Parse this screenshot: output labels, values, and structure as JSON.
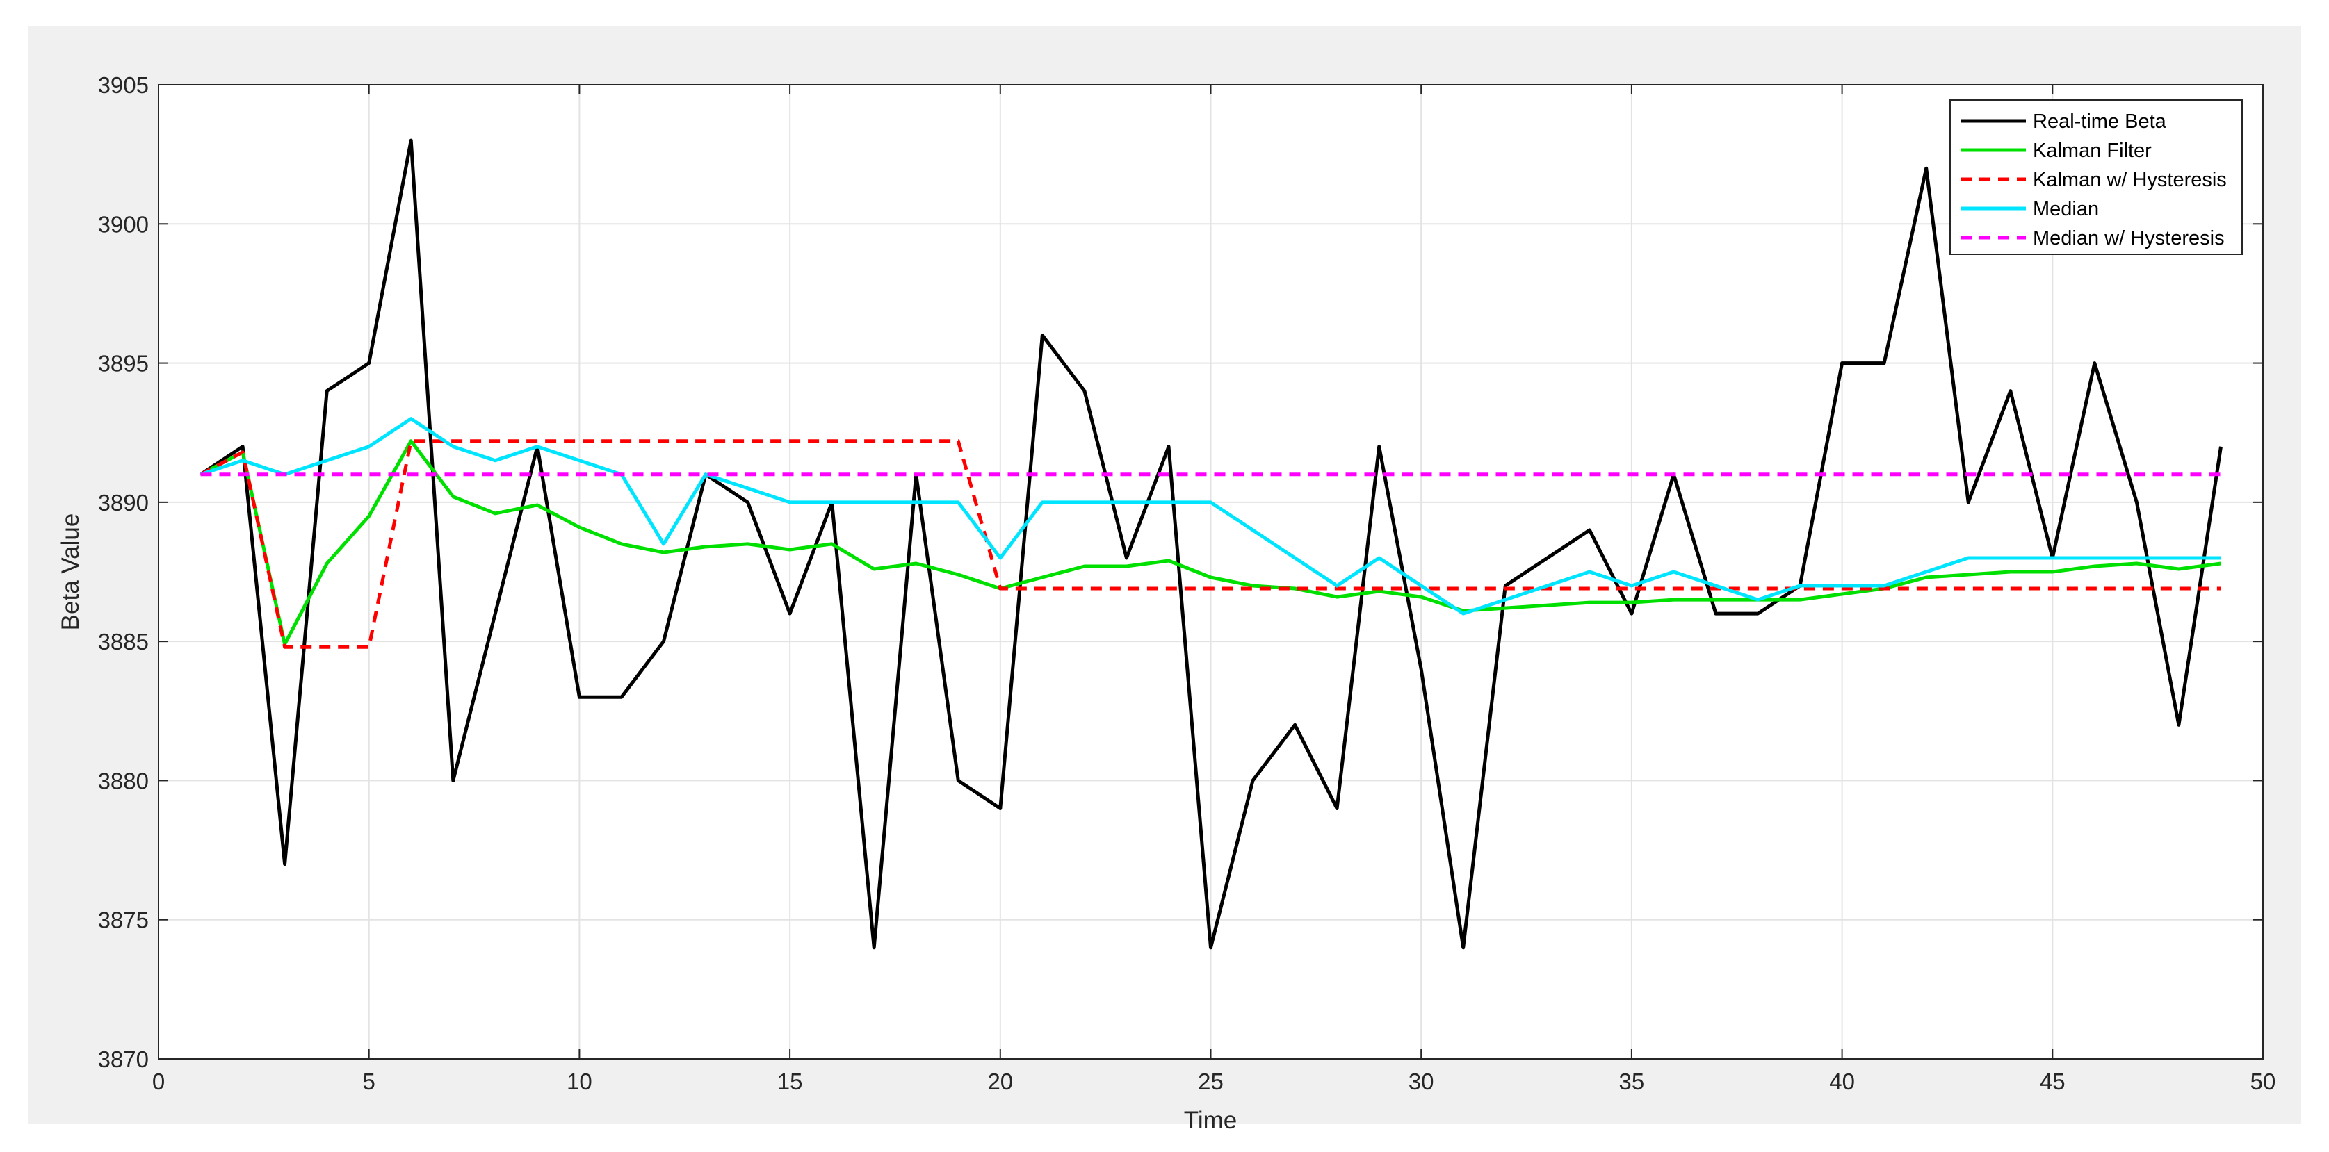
{
  "chart_data": {
    "type": "line",
    "xlabel": "Time",
    "ylabel": "Beta Value",
    "xlim": [
      0,
      50
    ],
    "ylim": [
      3870,
      3905
    ],
    "xticks": [
      0,
      5,
      10,
      15,
      20,
      25,
      30,
      35,
      40,
      45,
      50
    ],
    "yticks": [
      3870,
      3875,
      3880,
      3885,
      3890,
      3895,
      3900,
      3905
    ],
    "grid": true,
    "legend": "top-right",
    "x": [
      1,
      2,
      3,
      4,
      5,
      6,
      7,
      8,
      9,
      10,
      11,
      12,
      13,
      14,
      15,
      16,
      17,
      18,
      19,
      20,
      21,
      22,
      23,
      24,
      25,
      26,
      27,
      28,
      29,
      30,
      31,
      32,
      33,
      34,
      35,
      36,
      37,
      38,
      39,
      40,
      41,
      42,
      43,
      44,
      45,
      46,
      47,
      48,
      49
    ],
    "series": [
      {
        "name": "Real-time Beta",
        "color": "#000000",
        "dash": "solid",
        "values": [
          3891,
          3892,
          3877,
          3894,
          3895,
          3903,
          3880,
          3886,
          3892,
          3883,
          3883,
          3885,
          3891,
          3890,
          3886,
          3890,
          3874,
          3891,
          3880,
          3879,
          3896,
          3894,
          3888,
          3892,
          3874,
          3880,
          3882,
          3879,
          3892,
          3884,
          3874,
          3887,
          3888,
          3889,
          3886,
          3891,
          3886,
          3886,
          3887,
          3895,
          3895,
          3902,
          3890,
          3894,
          3888,
          3895,
          3890,
          3882,
          3892
        ]
      },
      {
        "name": "Kalman Filter",
        "color": "#00e000",
        "dash": "solid",
        "values": [
          3891,
          3891.8,
          3884.9,
          3887.8,
          3889.5,
          3892.2,
          3890.2,
          3889.6,
          3889.9,
          3889.1,
          3888.5,
          3888.2,
          3888.4,
          3888.5,
          3888.3,
          3888.5,
          3887.6,
          3887.8,
          3887.4,
          3886.9,
          3887.3,
          3887.7,
          3887.7,
          3887.9,
          3887.3,
          3887,
          3886.9,
          3886.6,
          3886.8,
          3886.6,
          3886.1,
          3886.2,
          3886.3,
          3886.4,
          3886.4,
          3886.5,
          3886.5,
          3886.5,
          3886.5,
          3886.7,
          3886.9,
          3887.3,
          3887.4,
          3887.5,
          3887.5,
          3887.7,
          3887.8,
          3887.6,
          3887.8
        ]
      },
      {
        "name": "Kalman w/ Hysteresis",
        "color": "#ff0000",
        "dash": "dashed",
        "values": [
          3891,
          3891.8,
          3884.8,
          3884.8,
          3884.8,
          3892.2,
          3892.2,
          3892.2,
          3892.2,
          3892.2,
          3892.2,
          3892.2,
          3892.2,
          3892.2,
          3892.2,
          3892.2,
          3892.2,
          3892.2,
          3892.2,
          3886.9,
          3886.9,
          3886.9,
          3886.9,
          3886.9,
          3886.9,
          3886.9,
          3886.9,
          3886.9,
          3886.9,
          3886.9,
          3886.9,
          3886.9,
          3886.9,
          3886.9,
          3886.9,
          3886.9,
          3886.9,
          3886.9,
          3886.9,
          3886.9,
          3886.9,
          3886.9,
          3886.9,
          3886.9,
          3886.9,
          3886.9,
          3886.9,
          3886.9,
          3886.9
        ]
      },
      {
        "name": "Median",
        "color": "#00e5ff",
        "dash": "solid",
        "values": [
          3891,
          3891.5,
          3891,
          3891.5,
          3892,
          3893,
          3892,
          3891.5,
          3892,
          3891.5,
          3891,
          3888.5,
          3891,
          3890.5,
          3890,
          3890,
          3890,
          3890,
          3890,
          3888,
          3890,
          3890,
          3890,
          3890,
          3890,
          3889,
          3888,
          3887,
          3888,
          3887,
          3886,
          3886.5,
          3887,
          3887.5,
          3887,
          3887.5,
          3887,
          3886.5,
          3887,
          3887,
          3887,
          3887.5,
          3888,
          3888,
          3888,
          3888,
          3888,
          3888,
          3888
        ]
      },
      {
        "name": "Median w/ Hysteresis",
        "color": "#ff00ff",
        "dash": "dashed",
        "values": [
          3891,
          3891,
          3891,
          3891,
          3891,
          3891,
          3891,
          3891,
          3891,
          3891,
          3891,
          3891,
          3891,
          3891,
          3891,
          3891,
          3891,
          3891,
          3891,
          3891,
          3891,
          3891,
          3891,
          3891,
          3891,
          3891,
          3891,
          3891,
          3891,
          3891,
          3891,
          3891,
          3891,
          3891,
          3891,
          3891,
          3891,
          3891,
          3891,
          3891,
          3891,
          3891,
          3891,
          3891,
          3891,
          3891,
          3891,
          3891,
          3891
        ]
      }
    ]
  }
}
